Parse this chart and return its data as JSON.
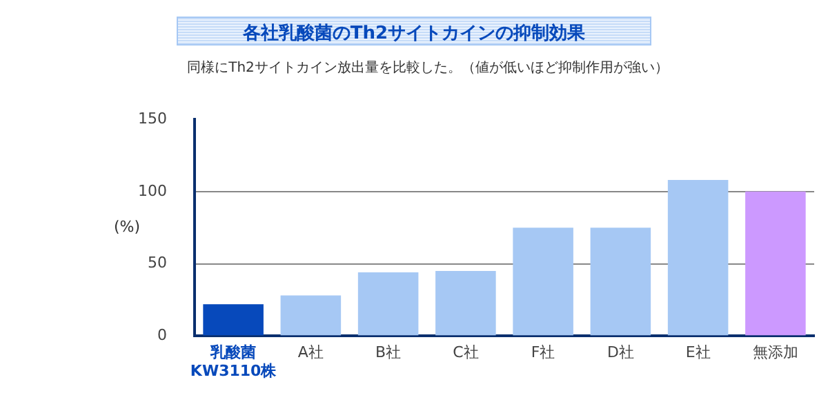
{
  "chart_data": {
    "type": "bar",
    "title": "各社乳酸菌のTh2サイトカインの抑制効果",
    "subtitle": "同様にTh2サイトカイン放出量を比較した。（値が低いほど抑制作用が強い）",
    "ylabel": "(%)",
    "categories": [
      "乳酸菌\nKW3110株",
      "A社",
      "B社",
      "C社",
      "F社",
      "D社",
      "E社",
      "無添加"
    ],
    "values": [
      22,
      28,
      44,
      45,
      75,
      75,
      108,
      100
    ],
    "colors": [
      "#0749bb",
      "#a6c8f4",
      "#a6c8f4",
      "#a6c8f4",
      "#a6c8f4",
      "#a6c8f4",
      "#a6c8f4",
      "#cc99ff"
    ],
    "ylim": [
      0,
      150
    ],
    "yticks": [
      0,
      50,
      100,
      150
    ],
    "grid": "y",
    "legend": false
  }
}
